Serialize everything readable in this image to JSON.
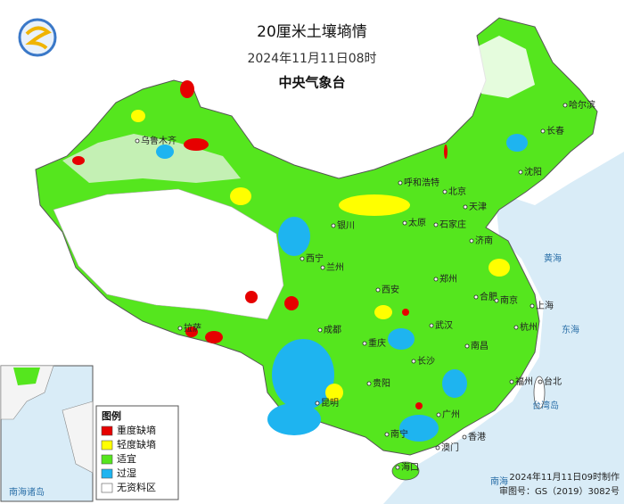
{
  "header": {
    "title": "20厘米土壤墒情",
    "date": "2024年11月11日08时",
    "agency": "中央气象台"
  },
  "legend": {
    "title": "图例",
    "items": [
      {
        "label": "重度缺墒",
        "color": "#e60000"
      },
      {
        "label": "轻度缺墒",
        "color": "#ffff00"
      },
      {
        "label": "适宜",
        "color": "#55e61e"
      },
      {
        "label": "过湿",
        "color": "#1eb4f0"
      },
      {
        "label": "无资料区",
        "color": "#ffffff"
      }
    ]
  },
  "footer": {
    "made": "2024年11月11日09时制作",
    "approval": "审图号：GS（2019）3082号"
  },
  "cities": [
    "哈尔滨",
    "长春",
    "沈阳",
    "呼和浩特",
    "北京",
    "天津",
    "石家庄",
    "太原",
    "济南",
    "银川",
    "西宁",
    "兰州",
    "郑州",
    "西安",
    "合肥",
    "南京",
    "上海",
    "武汉",
    "成都",
    "重庆",
    "杭州",
    "长沙",
    "南昌",
    "福州",
    "贵阳",
    "昆明",
    "南宁",
    "广州",
    "香港",
    "澳门",
    "海口",
    "台北",
    "拉萨",
    "乌鲁木齐"
  ],
  "seas": [
    "黄海",
    "东海",
    "南海",
    "台湾岛",
    "南海诸岛"
  ]
}
